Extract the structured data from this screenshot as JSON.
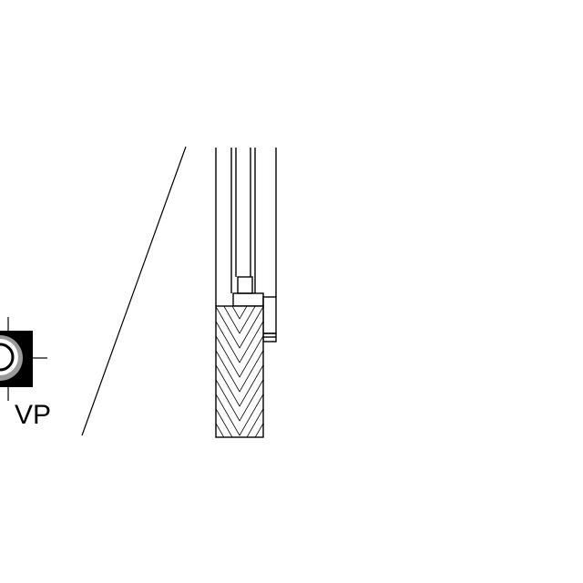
{
  "labels": {
    "viewpoint": "VP"
  },
  "icons": {
    "viewpoint_symbol": "viewpoint-marker-icon"
  },
  "colors": {
    "line": "#000000",
    "background": "#ffffff",
    "gray": "#9a9a9a"
  }
}
